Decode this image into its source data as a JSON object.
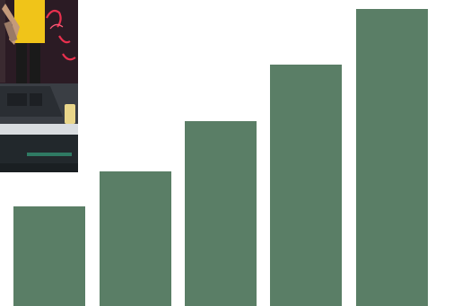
{
  "photo": {
    "alt_text": ""
  },
  "colors": {
    "bar": "#5a7e66",
    "photo_bg": "#2a1a22",
    "shirt": "#f0c419",
    "sign": "#e8304e",
    "stage": "#3a3e44"
  },
  "bar_values": [
    0.325,
    0.44,
    0.605,
    0.79,
    0.97
  ]
}
